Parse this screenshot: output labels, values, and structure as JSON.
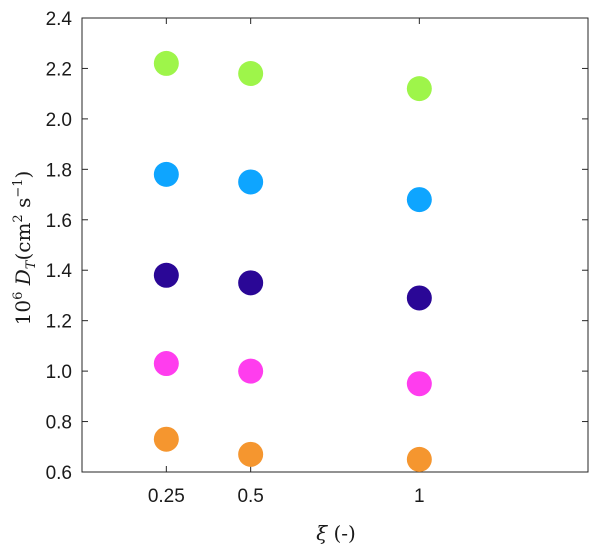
{
  "chart_data": {
    "type": "scatter",
    "x": [
      0.25,
      0.5,
      1
    ],
    "xticks": [
      "0.25",
      "0.5",
      "1"
    ],
    "xlabel": "ξ (-)",
    "ylabel": "10⁶ D_T (cm² s⁻¹)",
    "ylabel_parts": {
      "prefix": "10",
      "prefix_sup": "6",
      "symbol": "D",
      "symbol_sub": "T",
      "unit_open": "(cm",
      "unit_sup": "2",
      "unit_mid": " s",
      "unit_sup2": "−1",
      "unit_close": ")"
    },
    "xlim": [
      0,
      1.5
    ],
    "ylim": [
      0.6,
      2.4
    ],
    "yticks": [
      "0.6",
      "0.8",
      "1.0",
      "1.2",
      "1.4",
      "1.6",
      "1.8",
      "2.0",
      "2.2",
      "2.4"
    ],
    "grid": false,
    "series": [
      {
        "color": "#9ef54a",
        "values": [
          2.22,
          2.18,
          2.12
        ]
      },
      {
        "color": "#0ea5ff",
        "values": [
          1.78,
          1.75,
          1.68
        ]
      },
      {
        "color": "#2a0796",
        "values": [
          1.38,
          1.35,
          1.29
        ]
      },
      {
        "color": "#ff3dee",
        "values": [
          1.03,
          1.0,
          0.95
        ]
      },
      {
        "color": "#f5962f",
        "values": [
          0.73,
          0.67,
          0.65
        ]
      }
    ]
  }
}
